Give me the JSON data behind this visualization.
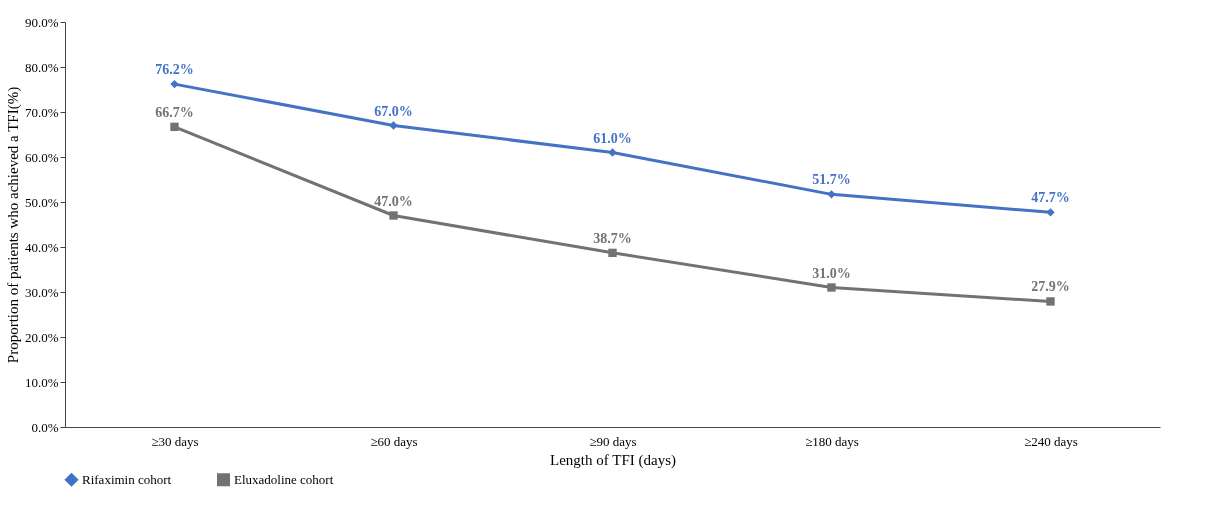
{
  "chart_data": {
    "type": "line",
    "xlabel": "Length of TFI (days)",
    "ylabel": "Proportion of patients who achieved a TFI(%)",
    "categories": [
      "≥30 days",
      "≥60 days",
      "≥90 days",
      "≥180 days",
      "≥240 days"
    ],
    "series": [
      {
        "name": "Rifaximin cohort",
        "color": "#4472c4",
        "marker": "diamond",
        "values": [
          76.2,
          67.0,
          61.0,
          51.7,
          47.7
        ],
        "value_labels": [
          "76.2%",
          "67.0%",
          "61.0%",
          "51.7%",
          "47.7%"
        ]
      },
      {
        "name": "Eluxadoline cohort",
        "color": "#767171",
        "marker": "square",
        "values": [
          66.7,
          47.0,
          38.7,
          31.0,
          27.9
        ],
        "value_labels": [
          "66.7%",
          "47.0%",
          "38.7%",
          "31.0%",
          "27.9%"
        ]
      }
    ],
    "ylim": [
      0,
      90
    ],
    "yticks": [
      {
        "value": 0,
        "label": "0.0%"
      },
      {
        "value": 10,
        "label": "10.0%"
      },
      {
        "value": 20,
        "label": "20.0%"
      },
      {
        "value": 30,
        "label": "30.0%"
      },
      {
        "value": 40,
        "label": "40.0%"
      },
      {
        "value": 50,
        "label": "50.0%"
      },
      {
        "value": 60,
        "label": "60.0%"
      },
      {
        "value": 70,
        "label": "70.0%"
      },
      {
        "value": 80,
        "label": "80.0%"
      },
      {
        "value": 90,
        "label": "90.0%"
      }
    ],
    "grid": false,
    "legend": "bottom",
    "line_style": "solid"
  }
}
